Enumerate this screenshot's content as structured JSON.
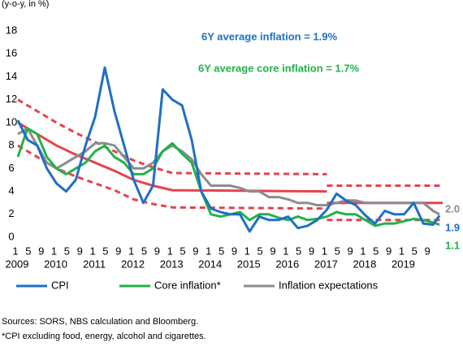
{
  "chart_data": {
    "type": "line",
    "subtitle": "(y-o-y, in %)",
    "x": [
      2009.0,
      2009.25,
      2009.5,
      2009.75,
      2010.0,
      2010.25,
      2010.5,
      2010.75,
      2011.0,
      2011.25,
      2011.5,
      2011.75,
      2012.0,
      2012.25,
      2012.5,
      2012.75,
      2013.0,
      2013.25,
      2013.5,
      2013.75,
      2014.0,
      2014.25,
      2014.5,
      2014.75,
      2015.0,
      2015.25,
      2015.5,
      2015.75,
      2016.0,
      2016.25,
      2016.5,
      2016.75,
      2017.0,
      2017.25,
      2017.5,
      2017.75,
      2018.0,
      2018.25,
      2018.5,
      2018.75,
      2019.0,
      2019.25,
      2019.5,
      2019.75,
      2019.917
    ],
    "series": [
      {
        "name": "CPI",
        "color": "#1f6fc5",
        "end_label": "1.9",
        "values": [
          10.2,
          8.5,
          8.0,
          6.0,
          4.7,
          4.0,
          5.0,
          8.0,
          10.5,
          14.8,
          11.0,
          8.0,
          5.0,
          3.0,
          4.5,
          12.9,
          12.0,
          11.5,
          8.5,
          4.0,
          2.5,
          2.2,
          2.0,
          2.0,
          0.5,
          1.8,
          1.5,
          1.5,
          1.8,
          0.8,
          1.0,
          1.5,
          2.4,
          3.8,
          3.2,
          2.8,
          1.9,
          1.2,
          2.3,
          2.0,
          2.0,
          3.0,
          1.2,
          1.1,
          1.9
        ]
      },
      {
        "name": "Core inflation*",
        "color": "#22b14c",
        "end_label": "1.1",
        "values": [
          7.0,
          9.5,
          9.0,
          7.0,
          6.0,
          5.5,
          6.0,
          6.5,
          7.5,
          8.0,
          7.0,
          6.5,
          5.5,
          5.5,
          6.0,
          7.5,
          8.2,
          7.3,
          6.5,
          4.0,
          2.0,
          1.8,
          2.0,
          2.2,
          1.5,
          2.0,
          2.0,
          1.7,
          1.5,
          1.8,
          1.5,
          1.6,
          1.8,
          2.2,
          2.0,
          2.0,
          1.5,
          1.0,
          1.2,
          1.2,
          1.4,
          1.6,
          1.5,
          1.3,
          1.1
        ]
      },
      {
        "name": "Inflation expectations",
        "color": "#8c8c8c",
        "end_label": "2.0",
        "values": [
          9.0,
          9.5,
          8.0,
          6.5,
          6.0,
          6.5,
          7.0,
          7.5,
          8.2,
          8.2,
          8.0,
          7.0,
          6.0,
          6.0,
          6.5,
          7.5,
          8.0,
          7.5,
          6.8,
          5.5,
          4.5,
          4.5,
          4.5,
          4.3,
          4.0,
          4.0,
          3.5,
          3.5,
          3.3,
          3.0,
          3.0,
          2.8,
          2.8,
          3.0,
          3.2,
          3.2,
          3.0,
          3.0,
          3.0,
          3.0,
          3.0,
          3.0,
          3.0,
          2.3,
          2.0
        ]
      }
    ],
    "target_band": {
      "color": "#e8414d",
      "x": [
        2009.0,
        2009.5,
        2010.0,
        2010.5,
        2011.0,
        2011.5,
        2012.0,
        2012.5,
        2013.0,
        2017.0,
        2017.0,
        2017.0,
        2020.0
      ],
      "center": [
        10,
        9,
        8,
        7.2,
        6.5,
        5.8,
        5,
        4.5,
        4.1,
        4,
        null,
        3,
        3
      ],
      "upper": [
        12,
        11,
        10,
        9.1,
        8.3,
        7.5,
        6.7,
        6.1,
        5.6,
        5.5,
        null,
        4.5,
        4.5
      ],
      "lower": [
        8,
        7,
        6,
        5.3,
        4.7,
        4.1,
        3.3,
        2.9,
        2.6,
        2.5,
        null,
        1.5,
        1.5
      ]
    },
    "annotations": [
      {
        "text": "6Y average inflation = 1.9%",
        "color": "#1f6fc5"
      },
      {
        "text": "6Y average core inflation = 1.7%",
        "color": "#22b14c"
      }
    ],
    "xlim": [
      2009.0,
      2020.0
    ],
    "xticks": [
      {
        "value": 2009.0,
        "label": "1"
      },
      {
        "value": 2009.333,
        "label": "5"
      },
      {
        "value": 2009.667,
        "label": "9"
      },
      {
        "value": 2010.0,
        "label": "1"
      },
      {
        "value": 2010.333,
        "label": "5"
      },
      {
        "value": 2010.667,
        "label": "9"
      },
      {
        "value": 2011.0,
        "label": "1"
      },
      {
        "value": 2011.333,
        "label": "5"
      },
      {
        "value": 2011.667,
        "label": "9"
      },
      {
        "value": 2012.0,
        "label": "1"
      },
      {
        "value": 2012.333,
        "label": "5"
      },
      {
        "value": 2012.667,
        "label": "9"
      },
      {
        "value": 2013.0,
        "label": "1"
      },
      {
        "value": 2013.333,
        "label": "5"
      },
      {
        "value": 2013.667,
        "label": "9"
      },
      {
        "value": 2014.0,
        "label": "1"
      },
      {
        "value": 2014.333,
        "label": "5"
      },
      {
        "value": 2014.667,
        "label": "9"
      },
      {
        "value": 2015.0,
        "label": "1"
      },
      {
        "value": 2015.333,
        "label": "5"
      },
      {
        "value": 2015.667,
        "label": "9"
      },
      {
        "value": 2016.0,
        "label": "1"
      },
      {
        "value": 2016.333,
        "label": "5"
      },
      {
        "value": 2016.667,
        "label": "9"
      },
      {
        "value": 2017.0,
        "label": "1"
      },
      {
        "value": 2017.333,
        "label": "5"
      },
      {
        "value": 2017.667,
        "label": "9"
      },
      {
        "value": 2018.0,
        "label": "1"
      },
      {
        "value": 2018.333,
        "label": "5"
      },
      {
        "value": 2018.667,
        "label": "9"
      },
      {
        "value": 2019.0,
        "label": "1"
      },
      {
        "value": 2019.333,
        "label": "5"
      },
      {
        "value": 2019.667,
        "label": "9"
      }
    ],
    "year_ticks": [
      2009,
      2010,
      2011,
      2012,
      2013,
      2014,
      2015,
      2016,
      2017,
      2018,
      2019
    ],
    "ylim": [
      0,
      18
    ],
    "yticks": [
      0,
      2,
      4,
      6,
      8,
      10,
      12,
      14,
      16,
      18
    ],
    "grid": false,
    "legend": "bottom",
    "footnotes": [
      "Sources: SORS, NBS calculation and Bloomberg.",
      "*CPI excluding food, energy, alcohol and cigarettes."
    ]
  }
}
